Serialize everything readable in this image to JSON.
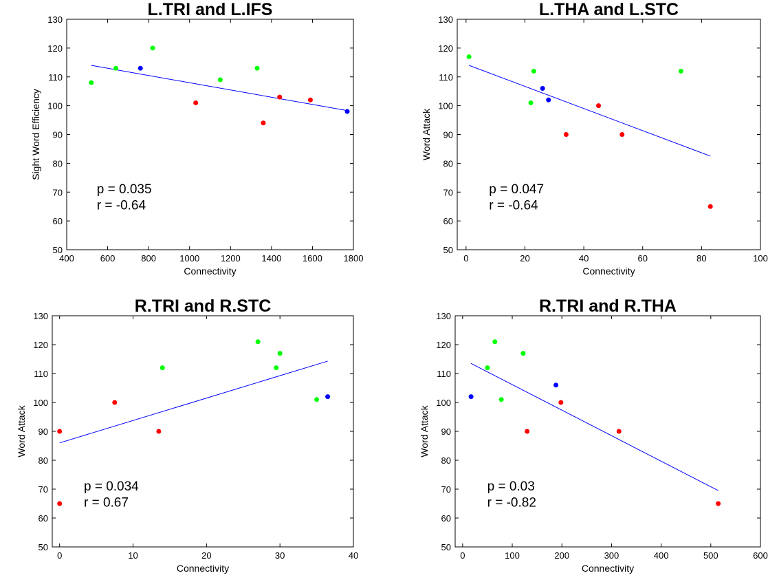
{
  "chart_data": [
    {
      "type": "scatter",
      "title": "L.TRI and L.IFS",
      "xlabel": "Connectivity",
      "ylabel": "Sight Word Efficiency",
      "xlim": [
        400,
        1800
      ],
      "ylim": [
        50,
        130
      ],
      "xticks": [
        400,
        600,
        800,
        1000,
        1200,
        1400,
        1600,
        1800
      ],
      "yticks": [
        50,
        60,
        70,
        80,
        90,
        100,
        110,
        120,
        130
      ],
      "annotations": [
        "p = 0.035",
        "r = -0.64"
      ],
      "grid": false,
      "points": [
        {
          "x": 520,
          "y": 108,
          "color": "#00ff00"
        },
        {
          "x": 640,
          "y": 113,
          "color": "#00ff00"
        },
        {
          "x": 820,
          "y": 120,
          "color": "#00ff00"
        },
        {
          "x": 1150,
          "y": 109,
          "color": "#00ff00"
        },
        {
          "x": 1330,
          "y": 113,
          "color": "#00ff00"
        },
        {
          "x": 760,
          "y": 113,
          "color": "#0000ff"
        },
        {
          "x": 1770,
          "y": 98,
          "color": "#0000ff"
        },
        {
          "x": 1030,
          "y": 101,
          "color": "#ff0000"
        },
        {
          "x": 1360,
          "y": 94,
          "color": "#ff0000"
        },
        {
          "x": 1440,
          "y": 103,
          "color": "#ff0000"
        },
        {
          "x": 1590,
          "y": 102,
          "color": "#ff0000"
        }
      ],
      "fit_line": {
        "x": [
          520,
          1770
        ],
        "y": [
          114,
          98.3
        ],
        "color": "#0000ff"
      }
    },
    {
      "type": "scatter",
      "title": "L.THA and L.STC",
      "xlabel": "Connectivity",
      "ylabel": "Word Attack",
      "xlim": [
        -3,
        100
      ],
      "ylim": [
        50,
        130
      ],
      "xticks": [
        0,
        20,
        40,
        60,
        80,
        100
      ],
      "yticks": [
        50,
        60,
        70,
        80,
        90,
        100,
        110,
        120,
        130
      ],
      "annotations": [
        "p = 0.047",
        "r = -0.64"
      ],
      "grid": false,
      "points": [
        {
          "x": 1,
          "y": 117,
          "color": "#00ff00"
        },
        {
          "x": 22,
          "y": 101,
          "color": "#00ff00"
        },
        {
          "x": 23,
          "y": 112,
          "color": "#00ff00"
        },
        {
          "x": 73,
          "y": 112,
          "color": "#00ff00"
        },
        {
          "x": 26,
          "y": 106,
          "color": "#0000ff"
        },
        {
          "x": 28,
          "y": 102,
          "color": "#0000ff"
        },
        {
          "x": 34,
          "y": 90,
          "color": "#ff0000"
        },
        {
          "x": 45,
          "y": 100,
          "color": "#ff0000"
        },
        {
          "x": 53,
          "y": 90,
          "color": "#ff0000"
        },
        {
          "x": 83,
          "y": 65,
          "color": "#ff0000"
        }
      ],
      "fit_line": {
        "x": [
          1,
          83
        ],
        "y": [
          114,
          82.5
        ],
        "color": "#0000ff"
      }
    },
    {
      "type": "scatter",
      "title": "R.TRI and R.STC",
      "xlabel": "Connectivity",
      "ylabel": "Word Attack",
      "xlim": [
        -1,
        40
      ],
      "ylim": [
        50,
        130
      ],
      "xticks": [
        0,
        10,
        20,
        30,
        40
      ],
      "yticks": [
        50,
        60,
        70,
        80,
        90,
        100,
        110,
        120,
        130
      ],
      "annotations": [
        "p = 0.034",
        "r = 0.67"
      ],
      "grid": false,
      "points": [
        {
          "x": 14,
          "y": 112,
          "color": "#00ff00"
        },
        {
          "x": 27,
          "y": 121,
          "color": "#00ff00"
        },
        {
          "x": 30,
          "y": 117,
          "color": "#00ff00"
        },
        {
          "x": 29.5,
          "y": 112,
          "color": "#00ff00"
        },
        {
          "x": 35,
          "y": 101,
          "color": "#00ff00"
        },
        {
          "x": 36.5,
          "y": 102,
          "color": "#0000ff"
        },
        {
          "x": 0,
          "y": 90,
          "color": "#ff0000"
        },
        {
          "x": 0,
          "y": 65,
          "color": "#ff0000"
        },
        {
          "x": 7.5,
          "y": 100,
          "color": "#ff0000"
        },
        {
          "x": 13.5,
          "y": 90,
          "color": "#ff0000"
        }
      ],
      "fit_line": {
        "x": [
          0,
          36.5
        ],
        "y": [
          86,
          114.3
        ],
        "color": "#0000ff"
      }
    },
    {
      "type": "scatter",
      "title": "R.TRI and R.THA",
      "xlabel": "Connectivity",
      "ylabel": "Word Attack",
      "xlim": [
        -15,
        600
      ],
      "ylim": [
        50,
        130
      ],
      "xticks": [
        0,
        100,
        200,
        300,
        400,
        500,
        600
      ],
      "yticks": [
        50,
        60,
        70,
        80,
        90,
        100,
        110,
        120,
        130
      ],
      "annotations": [
        "p = 0.03",
        "r = -0.82"
      ],
      "grid": false,
      "points": [
        {
          "x": 50,
          "y": 112,
          "color": "#00ff00"
        },
        {
          "x": 65,
          "y": 121,
          "color": "#00ff00"
        },
        {
          "x": 78,
          "y": 101,
          "color": "#00ff00"
        },
        {
          "x": 122,
          "y": 117,
          "color": "#00ff00"
        },
        {
          "x": 17,
          "y": 102,
          "color": "#0000ff"
        },
        {
          "x": 188,
          "y": 106,
          "color": "#0000ff"
        },
        {
          "x": 130,
          "y": 90,
          "color": "#ff0000"
        },
        {
          "x": 198,
          "y": 100,
          "color": "#ff0000"
        },
        {
          "x": 315,
          "y": 90,
          "color": "#ff0000"
        },
        {
          "x": 515,
          "y": 65,
          "color": "#ff0000"
        }
      ],
      "fit_line": {
        "x": [
          17,
          515
        ],
        "y": [
          113.5,
          69.5
        ],
        "color": "#0000ff"
      }
    }
  ]
}
